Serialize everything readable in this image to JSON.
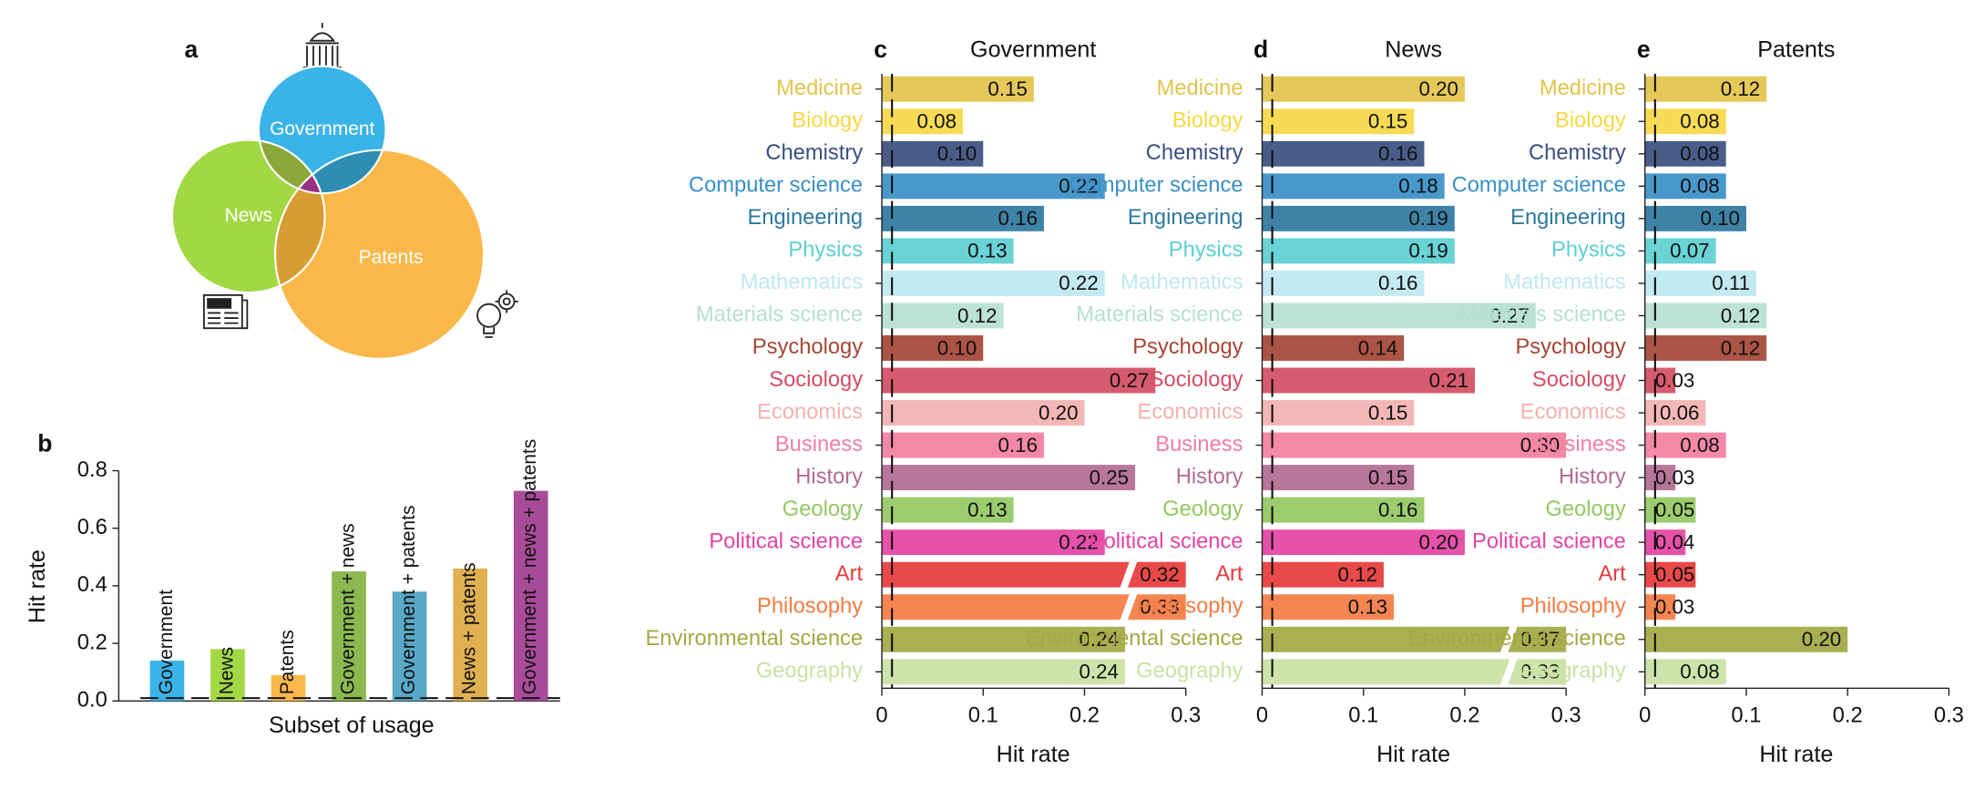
{
  "chart_data": [
    {
      "type": "venn",
      "panel": "a",
      "sets": [
        {
          "name": "Government",
          "color": "#3ab4e8"
        },
        {
          "name": "News",
          "color": "#a3d845"
        },
        {
          "name": "Patents",
          "color": "#fab84b"
        }
      ],
      "overlap_colors": [
        "#8aa83a",
        "#2e8db2",
        "#d89c34",
        "#9b2f86"
      ]
    },
    {
      "type": "bar",
      "panel": "b",
      "ylabel": "Hit rate",
      "xlabel": "Subset of usage",
      "categories": [
        "Government",
        "News",
        "Patents",
        "Government + news",
        "Government + patents",
        "News + patents",
        "Government + news + patents"
      ],
      "values": [
        0.14,
        0.18,
        0.09,
        0.45,
        0.38,
        0.46,
        0.73
      ],
      "colors": [
        "#3ab4e8",
        "#a3d845",
        "#fab84b",
        "#8cb850",
        "#5aa8c8",
        "#e0b050",
        "#a84c9a"
      ],
      "ylim": [
        0,
        0.8
      ],
      "yticks": [
        {
          "value": 0,
          "label": "0.0"
        },
        0.2,
        0.4,
        0.6,
        0.8
      ],
      "baseline": 0.01
    },
    {
      "type": "hbar",
      "panel": "c",
      "title": "Government",
      "xlabel": "Hit rate",
      "categories": [
        "Medicine",
        "Biology",
        "Chemistry",
        "Computer science",
        "Engineering",
        "Physics",
        "Mathematics",
        "Materials science",
        "Psychology",
        "Sociology",
        "Economics",
        "Business",
        "History",
        "Geology",
        "Political science",
        "Art",
        "Philosophy",
        "Environmental science",
        "Geography"
      ],
      "values": [
        0.15,
        0.08,
        0.1,
        0.22,
        0.16,
        0.13,
        0.22,
        0.12,
        0.1,
        0.27,
        0.2,
        0.16,
        0.25,
        0.13,
        0.22,
        0.32,
        0.33,
        0.24,
        0.24
      ],
      "value_labels": [
        "0.15",
        "0.08",
        "0.10",
        "0.22",
        "0.16",
        "0.13",
        "0.22",
        "0.12",
        "0.10",
        "0.27",
        "0.20",
        "0.16",
        "0.25",
        "0.13",
        "0.22",
        "0.32",
        "0.33",
        "0.24",
        "0.24"
      ],
      "colors": [
        "#e3c34b",
        "#f6d845",
        "#3b4f7f",
        "#3a8fc8",
        "#2e78a0",
        "#5ccfd2",
        "#bfe8f0",
        "#b5e0cf",
        "#a54535",
        "#d44d62",
        "#f2b2b0",
        "#f27ea2",
        "#b26a92",
        "#93c862",
        "#e442a2",
        "#e83a3a",
        "#f47b42",
        "#a3a843",
        "#c8e2a2"
      ],
      "xlim": [
        0,
        0.3
      ],
      "xticks": [
        0,
        0.1,
        0.2,
        0.3
      ],
      "baseline": 0.01
    },
    {
      "type": "hbar",
      "panel": "d",
      "title": "News",
      "xlabel": "Hit rate",
      "categories": [
        "Medicine",
        "Biology",
        "Chemistry",
        "Computer science",
        "Engineering",
        "Physics",
        "Mathematics",
        "Materials science",
        "Psychology",
        "Sociology",
        "Economics",
        "Business",
        "History",
        "Geology",
        "Political science",
        "Art",
        "Philosophy",
        "Environmental science",
        "Geography"
      ],
      "values": [
        0.2,
        0.15,
        0.16,
        0.18,
        0.19,
        0.19,
        0.16,
        0.27,
        0.14,
        0.21,
        0.15,
        0.3,
        0.15,
        0.16,
        0.2,
        0.12,
        0.13,
        0.37,
        0.33
      ],
      "value_labels": [
        "0.20",
        "0.15",
        "0.16",
        "0.18",
        "0.19",
        "0.19",
        "0.16",
        "0.27",
        "0.14",
        "0.21",
        "0.15",
        "0.30",
        "0.15",
        "0.16",
        "0.20",
        "0.12",
        "0.13",
        "0.37",
        "0.33"
      ],
      "colors": [
        "#e3c34b",
        "#f6d845",
        "#3b4f7f",
        "#3a8fc8",
        "#2e78a0",
        "#5ccfd2",
        "#bfe8f0",
        "#b5e0cf",
        "#a54535",
        "#d44d62",
        "#f2b2b0",
        "#f27ea2",
        "#b26a92",
        "#93c862",
        "#e442a2",
        "#e83a3a",
        "#f47b42",
        "#a3a843",
        "#c8e2a2"
      ],
      "xlim": [
        0,
        0.3
      ],
      "xticks": [
        0,
        0.1,
        0.2,
        0.3
      ],
      "baseline": 0.01
    },
    {
      "type": "hbar",
      "panel": "e",
      "title": "Patents",
      "xlabel": "Hit rate",
      "categories": [
        "Medicine",
        "Biology",
        "Chemistry",
        "Computer science",
        "Engineering",
        "Physics",
        "Mathematics",
        "Materials science",
        "Psychology",
        "Sociology",
        "Economics",
        "Business",
        "History",
        "Geology",
        "Political science",
        "Art",
        "Philosophy",
        "Environmental science",
        "Geography"
      ],
      "values": [
        0.12,
        0.08,
        0.08,
        0.08,
        0.1,
        0.07,
        0.11,
        0.12,
        0.12,
        0.03,
        0.06,
        0.08,
        0.03,
        0.05,
        0.04,
        0.05,
        0.03,
        0.2,
        0.08
      ],
      "value_labels": [
        "0.12",
        "0.08",
        "0.08",
        "0.08",
        "0.10",
        "0.07",
        "0.11",
        "0.12",
        "0.12",
        "0.03",
        "0.06",
        "0.08",
        "0.03",
        "0.05",
        "0.04",
        "0.05",
        "0.03",
        "0.20",
        "0.08"
      ],
      "colors": [
        "#e3c34b",
        "#f6d845",
        "#3b4f7f",
        "#3a8fc8",
        "#2e78a0",
        "#5ccfd2",
        "#bfe8f0",
        "#b5e0cf",
        "#a54535",
        "#d44d62",
        "#f2b2b0",
        "#f27ea2",
        "#b26a92",
        "#93c862",
        "#e442a2",
        "#e83a3a",
        "#f47b42",
        "#a3a843",
        "#c8e2a2"
      ],
      "xlim": [
        0,
        0.3
      ],
      "xticks": [
        0,
        0.1,
        0.2,
        0.3
      ],
      "baseline": 0.01
    }
  ]
}
